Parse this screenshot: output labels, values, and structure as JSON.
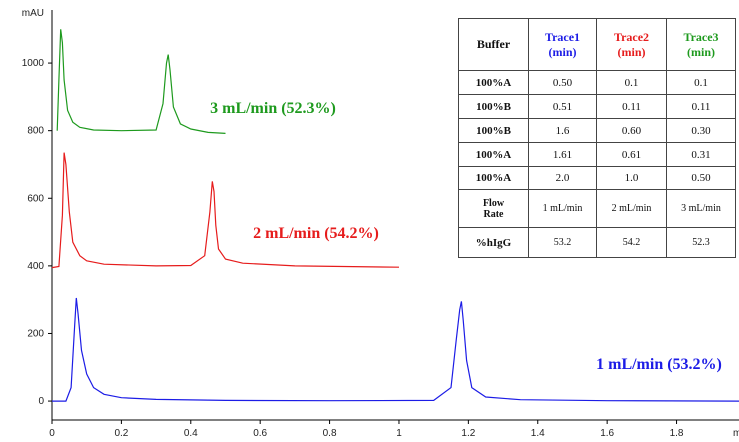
{
  "chart_data": {
    "type": "line",
    "y_label": "mAU",
    "x_label": "mi",
    "xlim": [
      0,
      1.98
    ],
    "ylim": [
      -56,
      1157
    ],
    "xticks": [
      0,
      0.2,
      0.4,
      0.6,
      0.8,
      1,
      1.2,
      1.4,
      1.6,
      1.8
    ],
    "yticks": [
      0,
      200,
      400,
      600,
      800,
      1000
    ],
    "series": [
      {
        "name": "1 mL/min (53.2%)",
        "color": "#1c1ce6",
        "x": [
          0,
          0.04,
          0.055,
          0.065,
          0.07,
          0.075,
          0.085,
          0.1,
          0.12,
          0.15,
          0.2,
          0.3,
          0.5,
          0.8,
          1.1,
          1.15,
          1.165,
          1.175,
          1.18,
          1.185,
          1.195,
          1.21,
          1.25,
          1.35,
          1.6,
          1.98
        ],
        "values": [
          0,
          0,
          40,
          220,
          305,
          260,
          150,
          80,
          40,
          20,
          10,
          5,
          2,
          1,
          2,
          40,
          180,
          270,
          295,
          240,
          120,
          40,
          12,
          4,
          1,
          0
        ]
      },
      {
        "name": "2 mL/min (54.2%)",
        "color": "#e61c1c",
        "x": [
          0,
          0.02,
          0.03,
          0.035,
          0.04,
          0.05,
          0.06,
          0.08,
          0.1,
          0.15,
          0.3,
          0.4,
          0.44,
          0.455,
          0.462,
          0.467,
          0.472,
          0.48,
          0.5,
          0.55,
          0.7,
          1.0
        ],
        "values": [
          395,
          398,
          550,
          735,
          700,
          560,
          470,
          430,
          415,
          405,
          400,
          401,
          430,
          560,
          650,
          620,
          520,
          450,
          420,
          408,
          400,
          396
        ]
      },
      {
        "name": "3 mL/min (52.3%)",
        "color": "#1e9a1e",
        "x": [
          0.015,
          0.02,
          0.025,
          0.03,
          0.035,
          0.045,
          0.06,
          0.08,
          0.12,
          0.2,
          0.3,
          0.32,
          0.33,
          0.335,
          0.34,
          0.35,
          0.37,
          0.4,
          0.45,
          0.5
        ],
        "values": [
          800,
          950,
          1100,
          1060,
          950,
          860,
          825,
          810,
          802,
          800,
          802,
          880,
          1000,
          1025,
          980,
          870,
          820,
          805,
          795,
          792
        ]
      }
    ],
    "table": {
      "header": [
        [
          "Buffer"
        ],
        [
          "Trace1",
          "(min)"
        ],
        [
          "Trace2",
          "(min)"
        ],
        [
          "Trace3",
          "(min)"
        ]
      ],
      "rows": [
        [
          "100%A",
          "0.50",
          "0.1",
          "0.1"
        ],
        [
          "100%B",
          "0.51",
          "0.11",
          "0.11"
        ],
        [
          "100%B",
          "1.6",
          "0.60",
          "0.30"
        ],
        [
          "100%A",
          "1.61",
          "0.61",
          "0.31"
        ],
        [
          "100%A",
          "2.0",
          "1.0",
          "0.50"
        ],
        [
          "Flow Rate",
          "1 mL/min",
          "2 mL/min",
          "3 mL/min"
        ],
        [
          "%hIgG",
          "53.2",
          "54.2",
          "52.3"
        ]
      ]
    }
  }
}
